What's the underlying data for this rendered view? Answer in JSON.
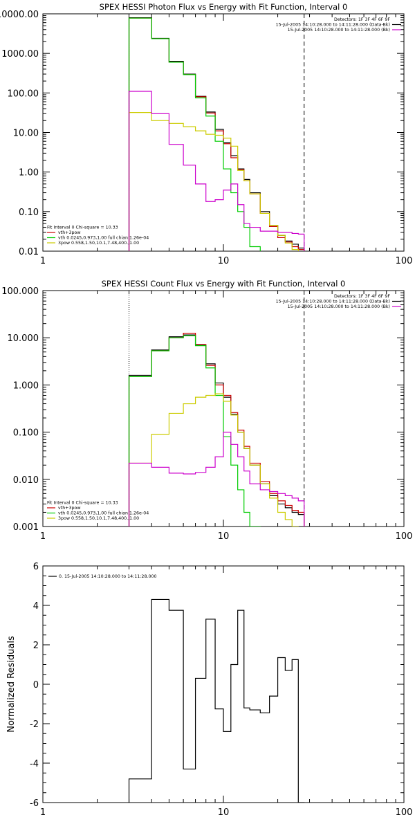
{
  "chart_data": [
    {
      "type": "line",
      "title": "SPEX HESSI Photon Flux vs Energy with Fit Function, Interval 0",
      "xscale": "log",
      "yscale": "log",
      "xlim": [
        1,
        100
      ],
      "ylim": [
        0.01,
        10000
      ],
      "xticks": [
        {
          "v": 1,
          "label": "1"
        },
        {
          "v": 10,
          "label": "10"
        },
        {
          "v": 100,
          "label": "100"
        }
      ],
      "yticks": [
        {
          "v": 0.01,
          "label": "0.01"
        },
        {
          "v": 0.1,
          "label": "0.10"
        },
        {
          "v": 1,
          "label": "1.00"
        },
        {
          "v": 10,
          "label": "10.00"
        },
        {
          "v": 100,
          "label": "100.00"
        },
        {
          "v": 1000,
          "label": "1000.00"
        },
        {
          "v": 10000,
          "label": "10000.00"
        }
      ],
      "vlines": [
        {
          "x": 3,
          "style": "dotted"
        },
        {
          "x": 28,
          "style": "dashed"
        }
      ],
      "info_lines": [
        "Detectors: 1F 3F 4F 6F 9F",
        "15-Jul-2005 14:10:28.000 to 14:11:28.000 (Data-Bk)",
        "15-Jul-2005 14:10:28.000 to 14:11:28.000 (Bk)"
      ],
      "info_colors": [
        "",
        "#000000",
        "#cc00cc"
      ],
      "fit_header": "Fit Interval 0   Chi-square = 10.33",
      "fit_legend": [
        {
          "text": "vth+3pow",
          "color": "#cc0000"
        },
        {
          "text": "vth 0.0245,0.973,1.00  full chian 1.26e-04",
          "color": "#00cc00"
        },
        {
          "text": "3pow 0.558,1.50,10.1,7.48,400.,1.00",
          "color": "#cccc00"
        }
      ],
      "edges": [
        3,
        4,
        5,
        6,
        7,
        8,
        9,
        10,
        11,
        12,
        13,
        14,
        16,
        18,
        20,
        22,
        24,
        26,
        28
      ],
      "series": [
        {
          "role": "data",
          "color": "#000000",
          "values": [
            8000,
            2400,
            630,
            300,
            82,
            33,
            12,
            5.5,
            2.6,
            1.2,
            0.65,
            0.3,
            0.1,
            0.045,
            0.025,
            0.018,
            0.015,
            0.012
          ]
        },
        {
          "role": "total",
          "color": "#cc0000",
          "values": [
            7800,
            2350,
            600,
            290,
            80,
            31,
            11,
            5.2,
            2.3,
            1.15,
            0.6,
            0.28,
            0.09,
            0.042,
            0.022,
            0.017,
            0.013,
            0.011
          ]
        },
        {
          "role": "thermal",
          "color": "#00cc00",
          "values": [
            7800,
            2350,
            600,
            290,
            75,
            26,
            6,
            1.2,
            0.3,
            0.1,
            0.04,
            0.013,
            0.009,
            0.009,
            0.009,
            0.009,
            0.009,
            0.009
          ]
        },
        {
          "role": "power",
          "color": "#cccc00",
          "values": [
            32,
            20,
            17,
            14,
            11,
            9,
            8.5,
            7.2,
            4.5,
            1.1,
            0.6,
            0.28,
            0.09,
            0.045,
            0.025,
            0.016,
            0.011,
            0.009
          ]
        },
        {
          "role": "background",
          "color": "#cc00cc",
          "values": [
            110,
            30,
            5,
            1.5,
            0.5,
            0.18,
            0.2,
            0.35,
            0.5,
            0.15,
            0.05,
            0.04,
            0.032,
            0.032,
            0.03,
            0.03,
            0.028,
            0.027
          ]
        }
      ]
    },
    {
      "type": "line",
      "title": "SPEX HESSI Count Flux vs Energy with Fit Function, Interval 0",
      "xscale": "log",
      "yscale": "log",
      "xlim": [
        1,
        100
      ],
      "ylim": [
        0.001,
        100
      ],
      "xticks": [
        {
          "v": 1,
          "label": "1"
        },
        {
          "v": 10,
          "label": "10"
        },
        {
          "v": 100,
          "label": "100"
        }
      ],
      "yticks": [
        {
          "v": 0.001,
          "label": "0.001"
        },
        {
          "v": 0.01,
          "label": "0.010"
        },
        {
          "v": 0.1,
          "label": "0.100"
        },
        {
          "v": 1,
          "label": "1.000"
        },
        {
          "v": 10,
          "label": "10.000"
        },
        {
          "v": 100,
          "label": "100.000"
        }
      ],
      "vlines": [
        {
          "x": 3,
          "style": "dotted"
        },
        {
          "x": 28,
          "style": "dashed"
        }
      ],
      "info_lines": [
        "Detectors: 1F 3F 4F 6F 9F",
        "15-Jul-2005 14:10:28.000 to 14:11:28.000 (Data-Bk)",
        "15-Jul-2005 14:10:28.000 to 14:11:28.000 (Bk)"
      ],
      "info_colors": [
        "",
        "#000000",
        "#cc00cc"
      ],
      "fit_header": "Fit Interval 0   Chi-square = 10.33",
      "fit_legend": [
        {
          "text": "vth+3pow",
          "color": "#cc0000"
        },
        {
          "text": "vth 0.0245,0.973,1.00  full chian 1.26e-04",
          "color": "#00cc00"
        },
        {
          "text": "3pow 0.558,1.50,10.1,7.48,400.,1.00",
          "color": "#cccc00"
        }
      ],
      "edges": [
        3,
        4,
        5,
        6,
        7,
        8,
        9,
        10,
        11,
        12,
        13,
        14,
        16,
        18,
        20,
        22,
        24,
        26,
        28
      ],
      "series": [
        {
          "role": "data",
          "color": "#000000",
          "values": [
            1.6,
            5.5,
            10.5,
            11.5,
            7.0,
            2.8,
            1.1,
            0.55,
            0.24,
            0.1,
            0.045,
            0.02,
            0.008,
            0.0045,
            0.003,
            0.0025,
            0.002,
            0.0018
          ]
        },
        {
          "role": "total",
          "color": "#cc0000",
          "values": [
            1.5,
            5.3,
            10.0,
            12.5,
            7.2,
            2.6,
            1.0,
            0.6,
            0.26,
            0.11,
            0.05,
            0.022,
            0.009,
            0.005,
            0.0035,
            0.0028,
            0.0022,
            0.002
          ]
        },
        {
          "role": "thermal",
          "color": "#00cc00",
          "values": [
            1.5,
            5.3,
            10.0,
            11.0,
            6.8,
            2.3,
            0.6,
            0.08,
            0.02,
            0.006,
            0.002,
            0.001,
            0.0008,
            0.0008,
            0.0008,
            0.0008,
            0.0008,
            0.0008
          ]
        },
        {
          "role": "power",
          "color": "#cccc00",
          "values": [
            0.022,
            0.09,
            0.25,
            0.4,
            0.55,
            0.6,
            0.65,
            0.45,
            0.23,
            0.1,
            0.045,
            0.02,
            0.008,
            0.004,
            0.002,
            0.0014,
            0.001,
            0.0008
          ]
        },
        {
          "role": "background",
          "color": "#cc00cc",
          "values": [
            0.022,
            0.018,
            0.0135,
            0.013,
            0.014,
            0.018,
            0.03,
            0.1,
            0.055,
            0.03,
            0.015,
            0.008,
            0.006,
            0.0055,
            0.005,
            0.0045,
            0.004,
            0.0035
          ]
        }
      ]
    },
    {
      "type": "line",
      "xscale": "log",
      "yscale": "linear",
      "xlim": [
        1,
        100
      ],
      "ylim": [
        -6,
        6
      ],
      "ylabel": "Normalized Residuals",
      "xticks": [
        {
          "v": 1,
          "label": "1"
        },
        {
          "v": 10,
          "label": "10"
        },
        {
          "v": 100,
          "label": "100"
        }
      ],
      "yticks": [
        {
          "v": -6,
          "label": "-6"
        },
        {
          "v": -4,
          "label": "-4"
        },
        {
          "v": -2,
          "label": "-2"
        },
        {
          "v": 0,
          "label": "0"
        },
        {
          "v": 2,
          "label": "2"
        },
        {
          "v": 4,
          "label": "4"
        },
        {
          "v": 6,
          "label": "6"
        }
      ],
      "legend": [
        {
          "text": "0. 15-Jul-2005 14:10:28.000 to 14:11:28.000",
          "color": "#000000"
        }
      ],
      "edges": [
        3,
        4,
        5,
        6,
        7,
        8,
        9,
        10,
        11,
        12,
        13,
        14,
        16,
        18,
        20,
        22,
        24,
        26,
        28
      ],
      "series": [
        {
          "role": "residuals",
          "color": "#000000",
          "values": [
            -4.8,
            4.3,
            3.75,
            -4.3,
            0.3,
            3.3,
            -1.25,
            -2.4,
            1.0,
            3.75,
            -1.2,
            -1.3,
            -1.45,
            -0.6,
            1.35,
            0.7,
            1.25,
            -6
          ]
        }
      ]
    }
  ]
}
